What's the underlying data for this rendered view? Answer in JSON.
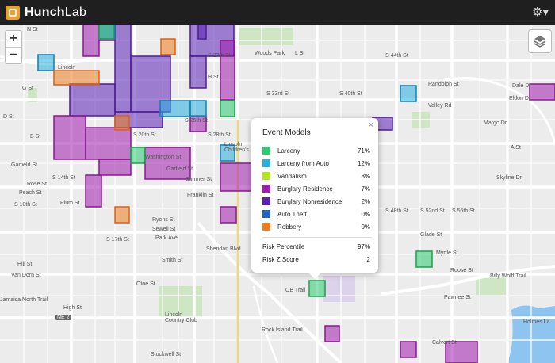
{
  "app": {
    "brand_bold": "Hunch",
    "brand_light": "Lab",
    "logo_icon": "hunchlab-logo-icon",
    "settings_icon": "gear-icon"
  },
  "controls": {
    "zoom_in": "+",
    "zoom_out": "−",
    "layers_icon": "layers-icon"
  },
  "popup": {
    "title": "Event Models",
    "close": "×",
    "models": [
      {
        "name": "Larceny",
        "value": "71%",
        "color": "#2ecc71"
      },
      {
        "name": "Larceny from Auto",
        "value": "12%",
        "color": "#29aee0"
      },
      {
        "name": "Vandalism",
        "value": "8%",
        "color": "#b5e61d"
      },
      {
        "name": "Burglary Residence",
        "value": "7%",
        "color": "#a21caf"
      },
      {
        "name": "Burglary Nonresidence",
        "value": "2%",
        "color": "#5b21b6"
      },
      {
        "name": "Auto Theft",
        "value": "0%",
        "color": "#1e63c8"
      },
      {
        "name": "Robbery",
        "value": "0%",
        "color": "#ef7d1e"
      }
    ],
    "risk_percentile_label": "Risk Percentile",
    "risk_percentile_value": "97%",
    "risk_z_label": "Risk Z Score",
    "risk_z_value": "2"
  },
  "map": {
    "labels": [
      "N St",
      "Woods Park",
      "L St",
      "Lincoln",
      "Randolph St",
      "Valley Rd",
      "Dale Dr",
      "Eldon Dr",
      "G St",
      "H St",
      "D St",
      "B St",
      "A St",
      "Margo Dr",
      "Lincoln Children's",
      "Washington St",
      "Garfield St",
      "Sumner St",
      "Franklin St",
      "Gameld St",
      "Rose St",
      "Peach St",
      "Plum St",
      "Ryons St",
      "Sewell St",
      "Park Ave",
      "Smith St",
      "Glade St",
      "Myrtle St",
      "Roose St",
      "Billy Wolff Trail",
      "Hill St",
      "Van Dorn St",
      "Otoe St",
      "Lincoln Country Club",
      "Pawnee St",
      "High St",
      "Stockwell St",
      "Holmes La",
      "Calvert St",
      "Sheridan Blvd",
      "Rock Island Trail",
      "Jamaica North Trail",
      "Skyline Dr",
      "S 10th St",
      "S 14th St",
      "S 17th St",
      "S 20th St",
      "S 25th St",
      "S 27th St",
      "S 28th St",
      "S 33rd St",
      "S 40th St",
      "S 44th St",
      "S 48th St",
      "S 52nd St",
      "S 56th St",
      "NE 2",
      "OB Trail"
    ]
  }
}
